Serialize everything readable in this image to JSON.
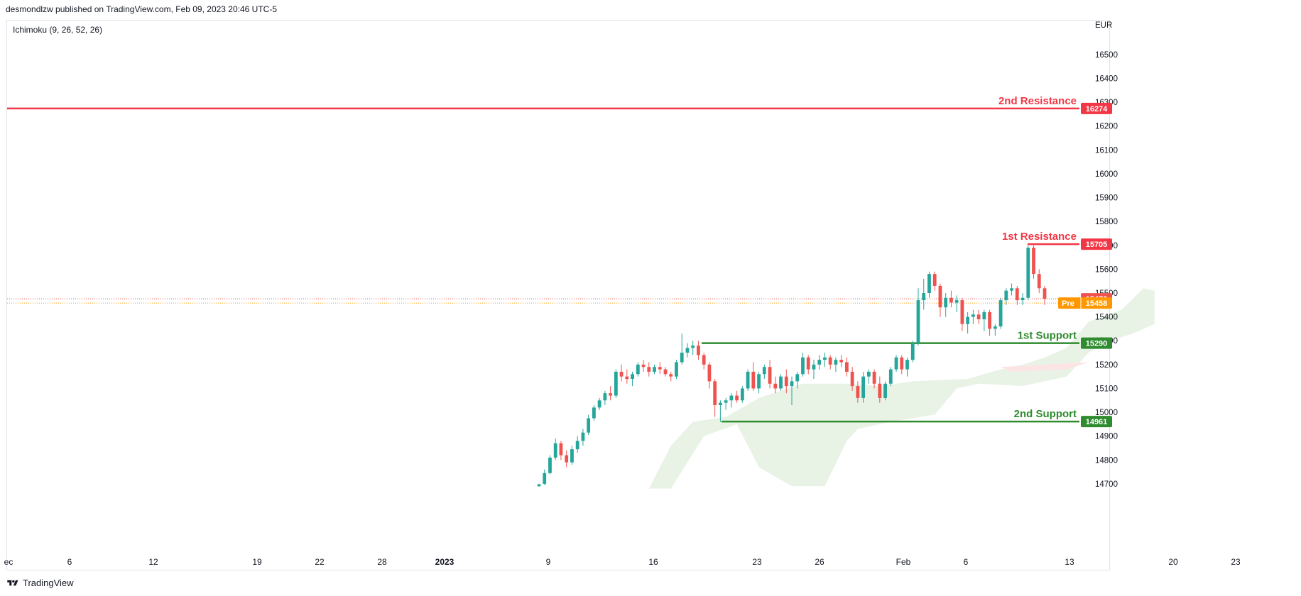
{
  "header": {
    "published_by": "desmondlzw published on TradingView.com, Feb 09, 2023 20:46 UTC-5",
    "indicator": "Ichimoku (9, 26, 52, 26)",
    "footer_brand": "TradingView"
  },
  "colors": {
    "up": "#26a69a",
    "down": "#ef5350",
    "resistance": "#f23645",
    "support": "#2e8b2e",
    "cloud": "#e8f3e6",
    "cloud_red": "#fde4e4",
    "pre": "#ff9800"
  },
  "chart_data": {
    "type": "candlestick",
    "currency": "EUR",
    "ylim": [
      14670,
      16580
    ],
    "yticks": [
      14700,
      14800,
      14900,
      15000,
      15100,
      15200,
      15300,
      15400,
      15500,
      15600,
      15700,
      15800,
      15900,
      16000,
      16100,
      16200,
      16300,
      16400,
      16500
    ],
    "x_axis_labels": [
      {
        "label": "ec",
        "bold": false
      },
      {
        "label": "6",
        "bold": false
      },
      {
        "label": "12",
        "bold": false
      },
      {
        "label": "19",
        "bold": false
      },
      {
        "label": "22",
        "bold": false
      },
      {
        "label": "28",
        "bold": false
      },
      {
        "label": "2023",
        "bold": true
      },
      {
        "label": "9",
        "bold": false
      },
      {
        "label": "16",
        "bold": false
      },
      {
        "label": "23",
        "bold": false
      },
      {
        "label": "26",
        "bold": false
      },
      {
        "label": "Feb",
        "bold": false
      },
      {
        "label": "6",
        "bold": false
      },
      {
        "label": "13",
        "bold": false
      },
      {
        "label": "20",
        "bold": false
      },
      {
        "label": "23",
        "bold": false
      }
    ],
    "levels": [
      {
        "name": "2nd Resistance",
        "value": 16274,
        "kind": "resistance",
        "full_width": true
      },
      {
        "name": "1st Resistance",
        "value": 15705,
        "kind": "resistance",
        "full_width": false
      },
      {
        "name": "1st Support",
        "value": 15290,
        "kind": "support",
        "full_width": false
      },
      {
        "name": "2nd Support",
        "value": 14961,
        "kind": "support",
        "full_width": false
      }
    ],
    "last_price": {
      "value": 15476
    },
    "premarket": {
      "label": "Pre",
      "value": 15458
    },
    "candles": [
      [
        14690,
        14700,
        14688,
        14698
      ],
      [
        14700,
        14760,
        14695,
        14745
      ],
      [
        14745,
        14820,
        14740,
        14810
      ],
      [
        14810,
        14890,
        14800,
        14870
      ],
      [
        14870,
        14880,
        14800,
        14820
      ],
      [
        14820,
        14840,
        14770,
        14790
      ],
      [
        14790,
        14860,
        14780,
        14845
      ],
      [
        14845,
        14900,
        14830,
        14880
      ],
      [
        14880,
        14930,
        14860,
        14915
      ],
      [
        14915,
        14990,
        14905,
        14975
      ],
      [
        14975,
        15030,
        14965,
        15020
      ],
      [
        15020,
        15060,
        15010,
        15050
      ],
      [
        15050,
        15090,
        15030,
        15080
      ],
      [
        15080,
        15110,
        15050,
        15070
      ],
      [
        15070,
        15180,
        15060,
        15170
      ],
      [
        15170,
        15200,
        15130,
        15150
      ],
      [
        15150,
        15180,
        15120,
        15140
      ],
      [
        15140,
        15170,
        15110,
        15160
      ],
      [
        15160,
        15210,
        15150,
        15200
      ],
      [
        15200,
        15220,
        15170,
        15190
      ],
      [
        15190,
        15210,
        15150,
        15170
      ],
      [
        15170,
        15200,
        15160,
        15190
      ],
      [
        15190,
        15210,
        15160,
        15180
      ],
      [
        15180,
        15190,
        15150,
        15160
      ],
      [
        15160,
        15170,
        15130,
        15150
      ],
      [
        15150,
        15220,
        15140,
        15210
      ],
      [
        15210,
        15330,
        15200,
        15250
      ],
      [
        15250,
        15290,
        15230,
        15270
      ],
      [
        15270,
        15300,
        15240,
        15280
      ],
      [
        15280,
        15300,
        15220,
        15240
      ],
      [
        15240,
        15250,
        15180,
        15200
      ],
      [
        15200,
        15210,
        15100,
        15130
      ],
      [
        15130,
        15140,
        14980,
        15030
      ],
      [
        15030,
        15050,
        14960,
        15040
      ],
      [
        15040,
        15060,
        15010,
        15050
      ],
      [
        15050,
        15080,
        15020,
        15070
      ],
      [
        15070,
        15090,
        15040,
        15050
      ],
      [
        15050,
        15110,
        15040,
        15100
      ],
      [
        15100,
        15180,
        15090,
        15170
      ],
      [
        15170,
        15210,
        15090,
        15100
      ],
      [
        15100,
        15170,
        15080,
        15160
      ],
      [
        15160,
        15200,
        15140,
        15190
      ],
      [
        15190,
        15220,
        15100,
        15120
      ],
      [
        15120,
        15150,
        15080,
        15100
      ],
      [
        15100,
        15160,
        15090,
        15150
      ],
      [
        15150,
        15180,
        15080,
        15110
      ],
      [
        15110,
        15150,
        15030,
        15130
      ],
      [
        15130,
        15170,
        15100,
        15160
      ],
      [
        15160,
        15250,
        15150,
        15230
      ],
      [
        15230,
        15240,
        15160,
        15180
      ],
      [
        15180,
        15220,
        15140,
        15200
      ],
      [
        15200,
        15240,
        15180,
        15220
      ],
      [
        15220,
        15250,
        15190,
        15230
      ],
      [
        15230,
        15240,
        15180,
        15200
      ],
      [
        15200,
        15230,
        15170,
        15220
      ],
      [
        15220,
        15240,
        15190,
        15210
      ],
      [
        15210,
        15230,
        15150,
        15170
      ],
      [
        15170,
        15190,
        15090,
        15110
      ],
      [
        15110,
        15130,
        15040,
        15060
      ],
      [
        15060,
        15170,
        15040,
        15150
      ],
      [
        15150,
        15180,
        15120,
        15170
      ],
      [
        15170,
        15180,
        15100,
        15120
      ],
      [
        15120,
        15150,
        15040,
        15060
      ],
      [
        15060,
        15130,
        15050,
        15120
      ],
      [
        15120,
        15190,
        15110,
        15180
      ],
      [
        15180,
        15240,
        15170,
        15230
      ],
      [
        15230,
        15240,
        15160,
        15180
      ],
      [
        15180,
        15230,
        15150,
        15220
      ],
      [
        15220,
        15300,
        15210,
        15290
      ],
      [
        15290,
        15520,
        15280,
        15470
      ],
      [
        15470,
        15560,
        15430,
        15500
      ],
      [
        15500,
        15590,
        15480,
        15580
      ],
      [
        15580,
        15590,
        15510,
        15530
      ],
      [
        15530,
        15540,
        15400,
        15440
      ],
      [
        15440,
        15500,
        15400,
        15480
      ],
      [
        15480,
        15510,
        15440,
        15460
      ],
      [
        15460,
        15490,
        15420,
        15470
      ],
      [
        15470,
        15480,
        15340,
        15370
      ],
      [
        15370,
        15420,
        15330,
        15400
      ],
      [
        15400,
        15430,
        15370,
        15410
      ],
      [
        15410,
        15430,
        15370,
        15390
      ],
      [
        15390,
        15430,
        15340,
        15420
      ],
      [
        15420,
        15430,
        15320,
        15350
      ],
      [
        15350,
        15370,
        15320,
        15360
      ],
      [
        15360,
        15480,
        15350,
        15470
      ],
      [
        15470,
        15520,
        15450,
        15510
      ],
      [
        15510,
        15540,
        15490,
        15520
      ],
      [
        15520,
        15530,
        15450,
        15470
      ],
      [
        15470,
        15500,
        15450,
        15480
      ],
      [
        15480,
        15700,
        15470,
        15690
      ],
      [
        15690,
        15700,
        15560,
        15580
      ],
      [
        15580,
        15600,
        15500,
        15520
      ],
      [
        15520,
        15530,
        15450,
        15476
      ]
    ]
  }
}
